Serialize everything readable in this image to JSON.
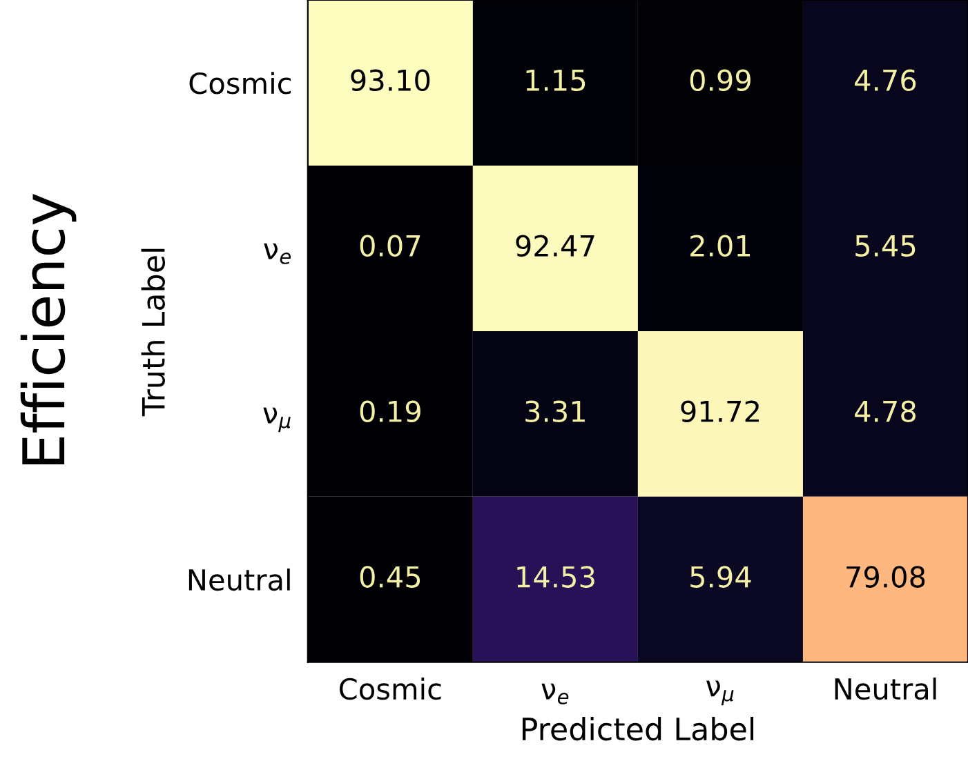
{
  "chart_data": {
    "type": "heatmap",
    "title": "Efficiency",
    "xlabel": "Predicted Label",
    "ylabel": "Truth Label",
    "categories": [
      "Cosmic",
      "ν$_{e}$",
      "ν$_{μ}$",
      "Neutral"
    ],
    "y_categories": [
      "Cosmic",
      "ν$_{e}$",
      "ν$_{μ}$",
      "Neutral"
    ],
    "cells": [
      [
        93.1,
        1.15,
        0.99,
        4.76
      ],
      [
        0.07,
        92.47,
        2.01,
        5.45
      ],
      [
        0.19,
        3.31,
        91.72,
        4.78
      ],
      [
        0.45,
        14.53,
        5.94,
        79.08
      ]
    ],
    "cell_labels": [
      [
        "93.10",
        "1.15",
        "0.99",
        "4.76"
      ],
      [
        "0.07",
        "92.47",
        "2.01",
        "5.45"
      ],
      [
        "0.19",
        "3.31",
        "91.72",
        "4.78"
      ],
      [
        "0.45",
        "14.53",
        "5.94",
        "79.08"
      ]
    ],
    "data_labels": true
  }
}
